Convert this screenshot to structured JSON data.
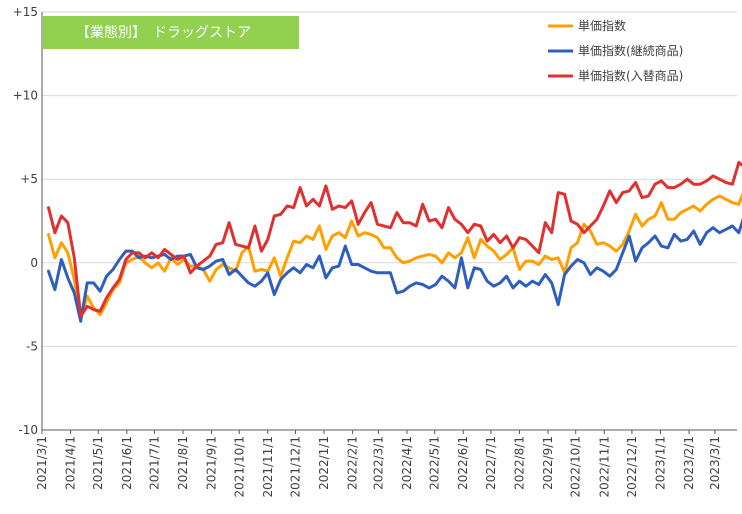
{
  "chart_data": {
    "type": "line",
    "title": "【業態別】　ドラッグストア",
    "xlabel": "",
    "ylabel": "",
    "ylim": [
      -10,
      15
    ],
    "yticks": [
      -10,
      -5,
      0,
      5,
      10,
      15
    ],
    "ytick_labels": [
      "-10",
      "-5",
      "0",
      "+5",
      "+10",
      "+15"
    ],
    "xlim": [
      "2021-03-01",
      "2023-03-25"
    ],
    "xtick_labels": [
      "2021/3/1",
      "2021/4/1",
      "2021/5/1",
      "2021/6/1",
      "2021/7/1",
      "2021/8/1",
      "2021/9/1",
      "2021/10/1",
      "2021/11/1",
      "2021/12/1",
      "2022/1/1",
      "2022/2/1",
      "2022/3/1",
      "2022/4/1",
      "2022/5/1",
      "2022/6/1",
      "2022/7/1",
      "2022/8/1",
      "2022/9/1",
      "2022/10/1",
      "2022/11/1",
      "2022/12/1",
      "2023/1/1",
      "2023/2/1",
      "2023/3/1"
    ],
    "grid": "horizontal",
    "legend_position": "top-right",
    "x_start": "2021-03-08",
    "x_step_days": 7,
    "series": [
      {
        "name": "単価指数",
        "color": "#ffa000",
        "values": [
          1.7,
          0.3,
          1.2,
          0.6,
          -1.0,
          -3.3,
          -2.0,
          -2.7,
          -3.1,
          -2.4,
          -1.6,
          -1.2,
          0.0,
          0.2,
          0.4,
          0.0,
          -0.3,
          0.0,
          -0.5,
          0.3,
          -0.1,
          0.2,
          -0.2,
          -0.2,
          -0.4,
          -1.1,
          -0.4,
          -0.1,
          -0.3,
          -0.5,
          0.6,
          1.0,
          -0.5,
          -0.4,
          -0.5,
          0.3,
          -0.8,
          0.3,
          1.3,
          1.2,
          1.6,
          1.4,
          2.2,
          0.8,
          1.6,
          1.8,
          1.5,
          2.5,
          1.6,
          1.8,
          1.7,
          1.5,
          0.9,
          0.9,
          0.3,
          0.0,
          0.1,
          0.3,
          0.4,
          0.5,
          0.4,
          0.0,
          0.6,
          0.3,
          0.6,
          1.5,
          0.3,
          1.4,
          1.0,
          0.7,
          0.2,
          0.5,
          0.9,
          -0.4,
          0.1,
          0.1,
          -0.1,
          0.4,
          0.2,
          0.3,
          -0.6,
          0.9,
          1.2,
          2.3,
          1.9,
          1.1,
          1.2,
          1.0,
          0.7,
          1.1,
          1.9,
          2.9,
          2.2,
          2.6,
          2.8,
          3.6,
          2.6,
          2.6,
          3.0,
          3.2,
          3.4,
          3.1,
          3.5,
          3.8,
          4.0,
          3.8,
          3.6,
          3.5,
          4.5,
          4.0,
          5.0,
          4.8,
          5.7,
          5.6,
          5.7
        ]
      },
      {
        "name": "単価指数(継続商品)",
        "color": "#2e5fbf",
        "values": [
          -0.5,
          -1.6,
          0.2,
          -0.9,
          -1.8,
          -3.5,
          -1.2,
          -1.2,
          -1.7,
          -0.8,
          -0.4,
          0.2,
          0.7,
          0.7,
          0.3,
          0.4,
          0.3,
          0.4,
          0.5,
          0.2,
          0.4,
          0.4,
          0.5,
          -0.3,
          -0.4,
          -0.2,
          0.1,
          0.2,
          -0.7,
          -0.4,
          -0.8,
          -1.2,
          -1.4,
          -1.1,
          -0.6,
          -1.9,
          -1.0,
          -0.6,
          -0.3,
          -0.6,
          -0.1,
          -0.3,
          0.4,
          -0.9,
          -0.3,
          -0.2,
          1.0,
          -0.1,
          -0.1,
          -0.3,
          -0.5,
          -0.6,
          -0.6,
          -0.6,
          -1.8,
          -1.7,
          -1.4,
          -1.2,
          -1.3,
          -1.5,
          -1.3,
          -0.8,
          -1.1,
          -1.5,
          0.3,
          -1.5,
          -0.3,
          -0.4,
          -1.1,
          -1.4,
          -1.2,
          -0.8,
          -1.5,
          -1.1,
          -1.4,
          -1.1,
          -1.3,
          -0.7,
          -1.2,
          -2.5,
          -0.7,
          -0.2,
          0.2,
          0.0,
          -0.7,
          -0.3,
          -0.5,
          -0.8,
          -0.4,
          0.6,
          1.6,
          0.1,
          0.9,
          1.2,
          1.6,
          1.0,
          0.9,
          1.7,
          1.3,
          1.4,
          1.9,
          1.1,
          1.8,
          2.1,
          1.8,
          2.0,
          2.2,
          1.8,
          3.0,
          2.0,
          3.1,
          2.8,
          3.7,
          3.2,
          3.7
        ]
      },
      {
        "name": "単価指数(入替商品)",
        "color": "#e03030",
        "values": [
          3.3,
          1.8,
          2.8,
          2.4,
          0.3,
          -3.2,
          -2.6,
          -2.8,
          -2.9,
          -2.1,
          -1.5,
          -1.0,
          0.2,
          0.6,
          0.6,
          0.3,
          0.6,
          0.3,
          0.8,
          0.5,
          0.2,
          0.4,
          -0.6,
          -0.2,
          0.1,
          0.4,
          1.1,
          1.2,
          2.4,
          1.1,
          1.0,
          0.9,
          2.2,
          0.7,
          1.4,
          2.8,
          2.9,
          3.4,
          3.3,
          4.5,
          3.4,
          3.8,
          3.4,
          4.6,
          3.2,
          3.4,
          3.3,
          3.7,
          2.3,
          3.0,
          3.6,
          2.3,
          2.2,
          2.1,
          3.0,
          2.4,
          2.4,
          2.2,
          3.5,
          2.5,
          2.6,
          2.1,
          3.3,
          2.6,
          2.3,
          1.8,
          2.3,
          2.2,
          1.3,
          1.7,
          1.2,
          1.6,
          0.9,
          1.5,
          1.4,
          1.0,
          0.6,
          2.4,
          1.8,
          4.2,
          4.1,
          2.5,
          2.3,
          1.8,
          2.2,
          2.6,
          3.4,
          4.3,
          3.6,
          4.2,
          4.3,
          4.8,
          3.9,
          4.0,
          4.7,
          4.9,
          4.5,
          4.5,
          4.7,
          5.0,
          4.7,
          4.7,
          4.9,
          5.2,
          5.0,
          4.8,
          4.7,
          6.0,
          5.7,
          6.4,
          6.2,
          7.0,
          7.3,
          7.3
        ]
      }
    ]
  }
}
